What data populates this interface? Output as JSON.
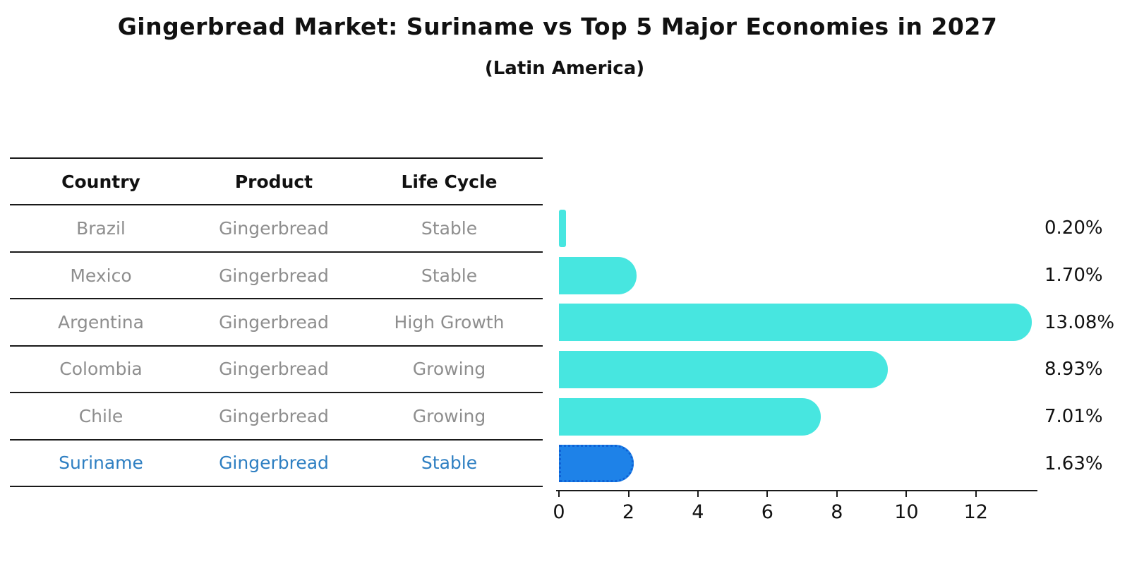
{
  "title": "Gingerbread Market: Suriname vs Top 5 Major Economies in 2027",
  "subtitle": "(Latin America)",
  "table": {
    "headers": {
      "country": "Country",
      "product": "Product",
      "life_cycle": "Life Cycle"
    },
    "rows": [
      {
        "country": "Brazil",
        "product": "Gingerbread",
        "life_cycle": "Stable",
        "highlight": false
      },
      {
        "country": "Mexico",
        "product": "Gingerbread",
        "life_cycle": "Stable",
        "highlight": false
      },
      {
        "country": "Argentina",
        "product": "Gingerbread",
        "life_cycle": "High Growth",
        "highlight": false
      },
      {
        "country": "Colombia",
        "product": "Gingerbread",
        "life_cycle": "Growing",
        "highlight": false
      },
      {
        "country": "Chile",
        "product": "Gingerbread",
        "life_cycle": "Growing",
        "highlight": false
      },
      {
        "country": "Suriname",
        "product": "Gingerbread",
        "life_cycle": "Stable",
        "highlight": true
      }
    ]
  },
  "chart_data": {
    "type": "bar",
    "orientation": "horizontal",
    "title": "Gingerbread Market: Suriname vs Top 5 Major Economies in 2027",
    "subtitle": "(Latin America)",
    "categories": [
      "Brazil",
      "Mexico",
      "Argentina",
      "Colombia",
      "Chile",
      "Suriname"
    ],
    "values": [
      0.2,
      1.7,
      13.08,
      8.93,
      7.01,
      1.63
    ],
    "value_labels": [
      "0.20%",
      "1.70%",
      "13.08%",
      "8.93%",
      "7.01%",
      "1.63%"
    ],
    "x_ticks": [
      0,
      2,
      4,
      6,
      8,
      10,
      12
    ],
    "xlim": [
      0,
      13.77
    ],
    "grid": false,
    "legend": null,
    "bar_color": "#47e6e0",
    "highlight_index": 5,
    "highlight_bar_color": "#1e82e8",
    "highlight_border_color": "#0e62d6",
    "highlight_text_color": "#2e7fc2"
  }
}
